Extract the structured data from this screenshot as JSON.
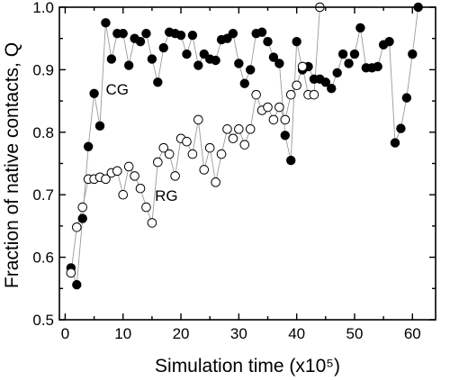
{
  "chart_data": {
    "type": "scatter",
    "xlabel": "Simulation time (x10⁵)",
    "ylabel": "Fraction of native contacts, Q",
    "xlim": [
      -1,
      64
    ],
    "ylim": [
      0.5,
      1.0
    ],
    "xticks": [
      0,
      10,
      20,
      30,
      40,
      50,
      60
    ],
    "xtick_labels": [
      "0",
      "10",
      "20",
      "30",
      "40",
      "50",
      "60"
    ],
    "yticks": [
      0.5,
      0.6,
      0.7,
      0.8,
      0.9,
      1.0
    ],
    "ytick_labels": [
      "0.5",
      "0.6",
      "0.7",
      "0.8",
      "0.9",
      "1.0"
    ],
    "grid": false,
    "legend": "none",
    "series": [
      {
        "name": "CG",
        "marker": "filled-circle",
        "color": "#000000",
        "line_color": "#9a9a9a",
        "x": [
          1,
          2,
          3,
          4,
          5,
          6,
          7,
          8,
          9,
          10,
          11,
          12,
          13,
          14,
          15,
          16,
          17,
          18,
          19,
          20,
          21,
          22,
          23,
          24,
          25,
          26,
          27,
          28,
          29,
          30,
          31,
          32,
          33,
          34,
          35,
          36,
          37,
          38,
          39,
          40,
          41,
          42,
          43,
          44,
          45,
          46,
          47,
          48,
          49,
          50,
          51,
          52,
          53,
          54,
          55,
          56,
          57,
          58,
          59,
          60,
          61
        ],
        "y": [
          0.583,
          0.556,
          0.662,
          0.777,
          0.862,
          0.81,
          0.975,
          0.917,
          0.958,
          0.958,
          0.907,
          0.95,
          0.945,
          0.958,
          0.917,
          0.88,
          0.935,
          0.96,
          0.958,
          0.955,
          0.925,
          0.955,
          0.907,
          0.925,
          0.917,
          0.915,
          0.948,
          0.95,
          0.958,
          0.91,
          0.878,
          0.9,
          0.958,
          0.96,
          0.945,
          0.92,
          0.91,
          0.795,
          0.755,
          0.945,
          0.9,
          0.905,
          0.885,
          0.885,
          0.88,
          0.87,
          0.895,
          0.925,
          0.91,
          0.925,
          0.967,
          0.903,
          0.903,
          0.905,
          0.94,
          0.945,
          0.783,
          0.806,
          0.855,
          0.925,
          1.0
        ]
      },
      {
        "name": "RG",
        "marker": "open-circle",
        "color": "#000000",
        "line_color": "#9a9a9a",
        "x": [
          1,
          2,
          3,
          4,
          5,
          6,
          7,
          8,
          9,
          10,
          11,
          12,
          13,
          14,
          15,
          16,
          17,
          18,
          19,
          20,
          21,
          22,
          23,
          24,
          25,
          26,
          27,
          28,
          29,
          30,
          31,
          32,
          33,
          34,
          35,
          36,
          37,
          38,
          39,
          40,
          41,
          42,
          43,
          44
        ],
        "y": [
          0.575,
          0.648,
          0.68,
          0.725,
          0.725,
          0.728,
          0.725,
          0.735,
          0.738,
          0.7,
          0.745,
          0.73,
          0.71,
          0.68,
          0.655,
          0.752,
          0.775,
          0.765,
          0.73,
          0.79,
          0.785,
          0.765,
          0.82,
          0.74,
          0.775,
          0.72,
          0.765,
          0.805,
          0.79,
          0.805,
          0.78,
          0.805,
          0.86,
          0.835,
          0.84,
          0.82,
          0.84,
          0.82,
          0.86,
          0.875,
          0.905,
          0.86,
          0.86,
          1.0
        ]
      }
    ],
    "annotations": [
      {
        "text": "CG",
        "x": 7,
        "y": 0.86
      },
      {
        "text": "RG",
        "x": 15.5,
        "y": 0.69
      }
    ]
  }
}
